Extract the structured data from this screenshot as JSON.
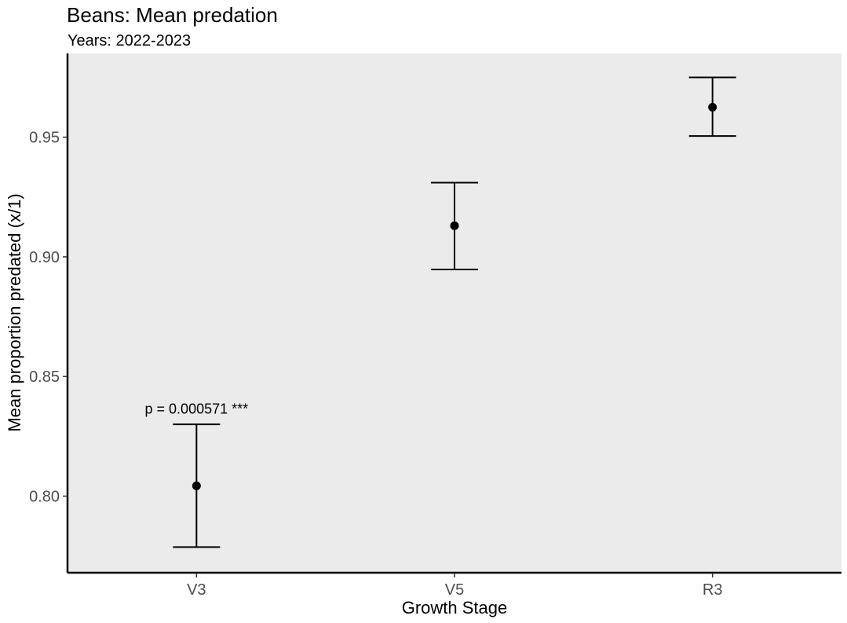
{
  "chart_data": {
    "type": "scatter",
    "title": "Beans: Mean predation",
    "subtitle": "Years: 2022-2023",
    "xlabel": "Growth Stage",
    "ylabel": "Mean proportion predated (x/1)",
    "categories": [
      "V3",
      "V5",
      "R3"
    ],
    "points": [
      {
        "x": "V3",
        "mean": 0.8043,
        "lower": 0.7787,
        "upper": 0.83
      },
      {
        "x": "V5",
        "mean": 0.913,
        "lower": 0.8947,
        "upper": 0.931
      },
      {
        "x": "R3",
        "mean": 0.9625,
        "lower": 0.9505,
        "upper": 0.975
      }
    ],
    "ylim": [
      0.768,
      0.985
    ],
    "yticks": [
      0.8,
      0.85,
      0.9,
      0.95
    ],
    "ytick_labels": [
      "0.80",
      "0.85",
      "0.90",
      "0.95"
    ],
    "annotations": [
      {
        "x": "V3",
        "y": 0.8365,
        "text": "p = 0.000571 ***"
      }
    ],
    "grid": false,
    "panel_background": "#ebebeb",
    "mark_color": "#000000"
  }
}
